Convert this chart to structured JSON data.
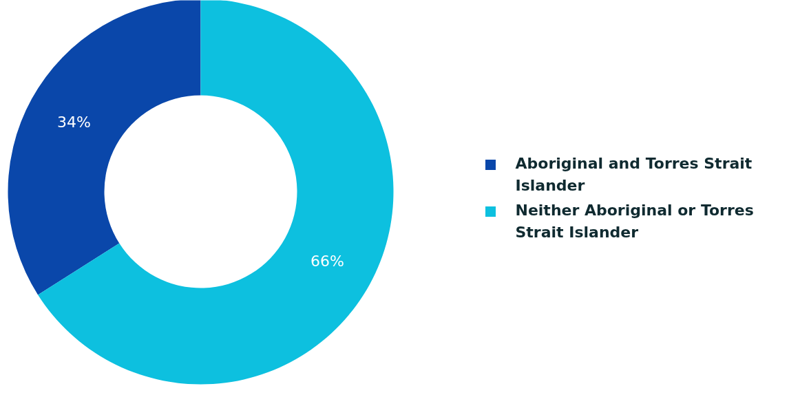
{
  "chart_data": {
    "type": "donut",
    "categories": [
      "Aboriginal and Torres Strait Islander",
      "Neither Aboriginal or Torres Strait Islander"
    ],
    "values": [
      34,
      66
    ],
    "colors": [
      "#0a47aa",
      "#0dc0df"
    ],
    "value_labels": [
      "34%",
      "66%"
    ],
    "legend": "right"
  }
}
